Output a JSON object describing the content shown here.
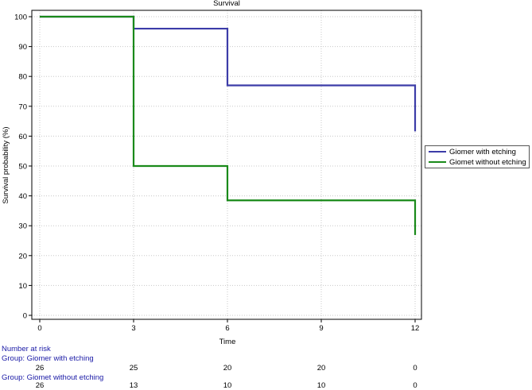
{
  "chart_data": {
    "type": "line",
    "title": "Survival",
    "xlabel": "Time",
    "ylabel": "Survival probability (%)",
    "xlim": [
      0,
      12
    ],
    "ylim": [
      0,
      100
    ],
    "x_ticks": [
      "0",
      "3",
      "6",
      "9",
      "12"
    ],
    "y_ticks": [
      "0",
      "10",
      "20",
      "30",
      "40",
      "50",
      "60",
      "70",
      "80",
      "90",
      "100"
    ],
    "grid": true,
    "legend_position": "right",
    "step": true,
    "series": [
      {
        "name": "Giomer with etching",
        "color": "#3c3ca8",
        "x": [
          0,
          3,
          6,
          12,
          12
        ],
        "y": [
          100,
          96,
          77,
          77,
          61.6
        ]
      },
      {
        "name": "Giomet without etching",
        "color": "#1a8a1a",
        "x": [
          0,
          3,
          6,
          12,
          12
        ],
        "y": [
          100,
          50,
          38.5,
          38.5,
          26.9
        ]
      }
    ]
  },
  "risk_table": {
    "title": "Number at risk",
    "groups": [
      {
        "label": "Group: Giomer with etching",
        "values": [
          "26",
          "25",
          "20",
          "20",
          "0"
        ]
      },
      {
        "label": "Group: Giomet without etching",
        "values": [
          "26",
          "13",
          "10",
          "10",
          "0"
        ]
      }
    ]
  }
}
